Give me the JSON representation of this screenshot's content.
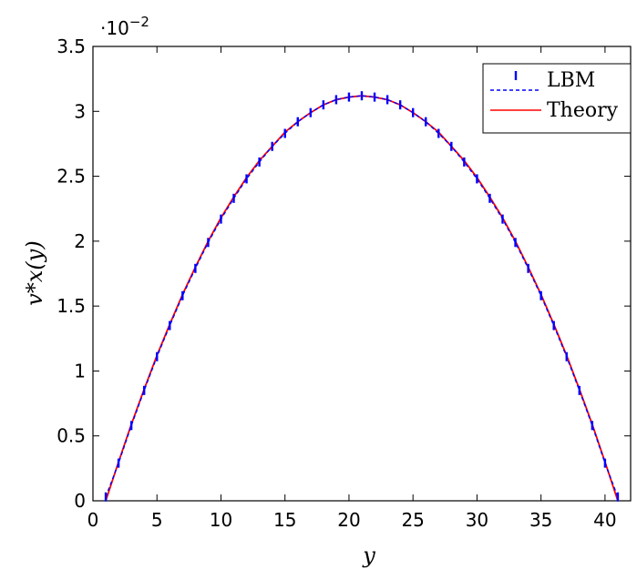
{
  "chart_data": {
    "type": "line",
    "xlabel": "y",
    "ylabel": "v*x(y)",
    "y_exponent_label": "·10",
    "y_exponent_power": "−2",
    "xlim": [
      0,
      42
    ],
    "ylim": [
      0,
      3.5
    ],
    "xticks": [
      0,
      5,
      10,
      15,
      20,
      25,
      30,
      35,
      40
    ],
    "xtick_labels": [
      "0",
      "5",
      "10",
      "15",
      "20",
      "25",
      "30",
      "35",
      "40"
    ],
    "yticks": [
      0,
      0.5,
      1,
      1.5,
      2,
      2.5,
      3,
      3.5
    ],
    "ytick_labels": [
      "0",
      "0.5",
      "1",
      "1.5",
      "2",
      "2.5",
      "3",
      "3.5"
    ],
    "grid": false,
    "legend_position": "top-right",
    "series": [
      {
        "name": "LBM",
        "style": "markers-dashed",
        "color": "#0000ff",
        "x": [
          1,
          2,
          3,
          4,
          5,
          6,
          7,
          8,
          9,
          10,
          11,
          12,
          13,
          14,
          15,
          16,
          17,
          18,
          19,
          20,
          21,
          22,
          23,
          24,
          25,
          26,
          27,
          28,
          29,
          30,
          31,
          32,
          33,
          34,
          35,
          36,
          37,
          38,
          39,
          40,
          41
        ],
        "values": [
          0.03,
          0.29,
          0.58,
          0.85,
          1.11,
          1.35,
          1.58,
          1.79,
          1.99,
          2.17,
          2.33,
          2.48,
          2.61,
          2.73,
          2.83,
          2.92,
          2.99,
          3.05,
          3.09,
          3.11,
          3.12,
          3.11,
          3.09,
          3.05,
          2.99,
          2.92,
          2.83,
          2.73,
          2.61,
          2.48,
          2.33,
          2.17,
          1.99,
          1.79,
          1.58,
          1.35,
          1.11,
          0.85,
          0.58,
          0.29,
          0.03
        ]
      },
      {
        "name": "Theory",
        "style": "solid",
        "color": "#ff0000",
        "x": [
          1,
          2,
          3,
          4,
          5,
          6,
          7,
          8,
          9,
          10,
          11,
          12,
          13,
          14,
          15,
          16,
          17,
          18,
          19,
          20,
          21,
          22,
          23,
          24,
          25,
          26,
          27,
          28,
          29,
          30,
          31,
          32,
          33,
          34,
          35,
          36,
          37,
          38,
          39,
          40,
          41
        ],
        "values": [
          0.0,
          0.3,
          0.59,
          0.86,
          1.12,
          1.36,
          1.59,
          1.8,
          2.0,
          2.18,
          2.34,
          2.49,
          2.62,
          2.73,
          2.84,
          2.92,
          2.99,
          3.05,
          3.09,
          3.11,
          3.12,
          3.11,
          3.09,
          3.05,
          2.99,
          2.92,
          2.84,
          2.73,
          2.62,
          2.49,
          2.34,
          2.18,
          2.0,
          1.8,
          1.59,
          1.36,
          1.12,
          0.86,
          0.59,
          0.3,
          0.0
        ]
      }
    ]
  }
}
